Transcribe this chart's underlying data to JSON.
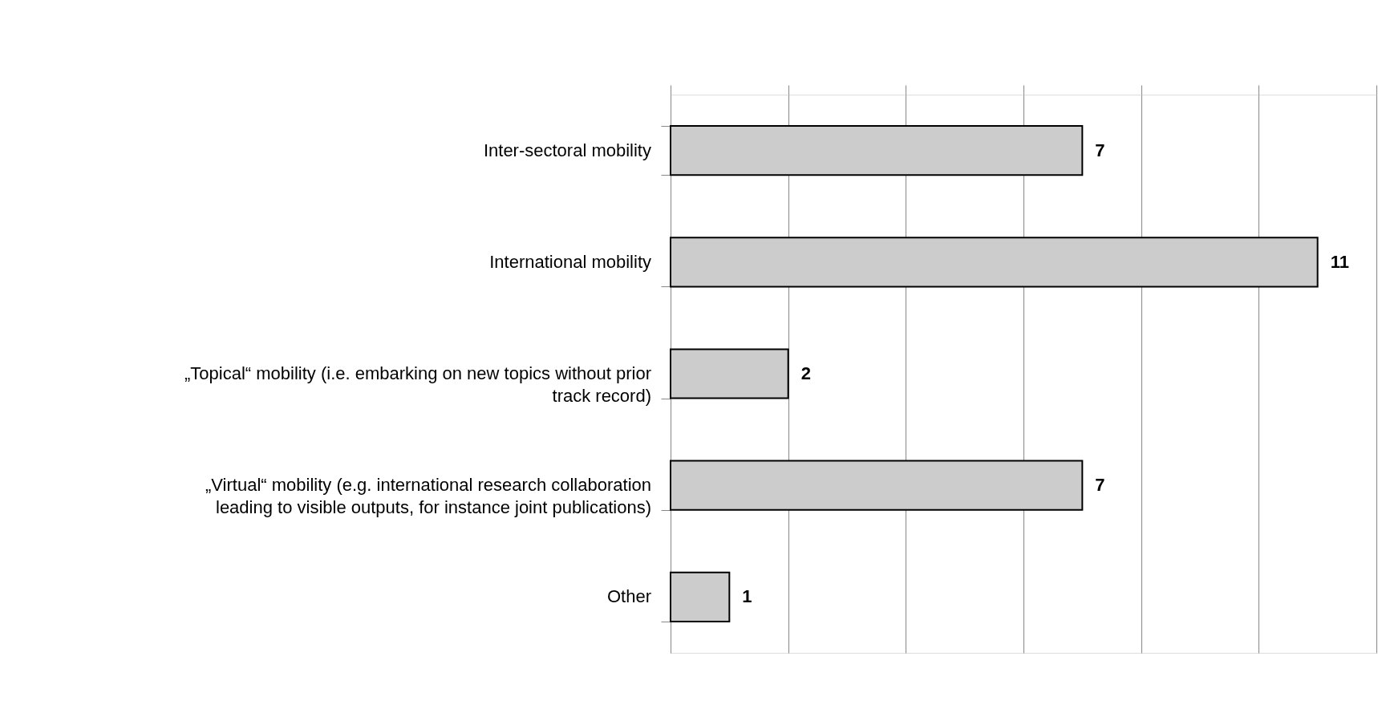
{
  "chart_data": {
    "type": "bar",
    "orientation": "horizontal",
    "categories": [
      "Inter-sectoral mobility",
      "International mobility",
      "„Topical“ mobility (i.e. embarking on new topics without prior track record)",
      "„Virtual“ mobility (e.g. international research collaboration leading to visible outputs, for instance joint publications)",
      "Other"
    ],
    "values": [
      7,
      11,
      2,
      7,
      1
    ],
    "color": "#cccccc",
    "xlim": [
      0,
      12
    ],
    "xticks": [
      {
        "value": 0,
        "label": null
      },
      {
        "value": 2,
        "label": null
      },
      {
        "value": 4,
        "label": null
      },
      {
        "value": 6,
        "label": null
      },
      {
        "value": 8,
        "label": null
      },
      {
        "value": 10,
        "label": null
      },
      {
        "value": 12,
        "label": null
      }
    ],
    "tick_labels": "y",
    "grid": "x",
    "data_labels": true
  }
}
